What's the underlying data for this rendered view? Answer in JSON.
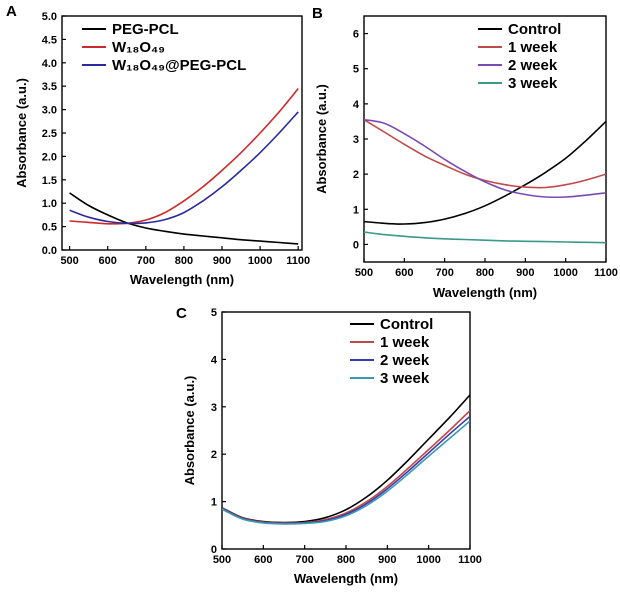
{
  "chart_data": [
    {
      "panel": "A",
      "type": "line",
      "title": "",
      "xlabel": "Wavelength (nm)",
      "ylabel": "Absorbance (a.u.)",
      "xlim": [
        480,
        1110
      ],
      "ylim": [
        0,
        5.0
      ],
      "xticks": [
        500,
        600,
        700,
        800,
        900,
        1000,
        1100
      ],
      "yticks": [
        0.0,
        0.5,
        1.0,
        1.5,
        2.0,
        2.5,
        3.0,
        3.5,
        4.0,
        4.5,
        5.0
      ],
      "ytick_labels": [
        "0.0",
        "0.5",
        "1.0",
        "1.5",
        "2.0",
        "2.5",
        "3.0",
        "3.5",
        "4.0",
        "4.5",
        "5.0"
      ],
      "legend_position": "top-left",
      "series": [
        {
          "name": "PEG-PCL",
          "color": "#000000",
          "x": [
            500,
            550,
            600,
            650,
            700,
            750,
            800,
            850,
            900,
            950,
            1000,
            1050,
            1100
          ],
          "y": [
            1.22,
            0.95,
            0.75,
            0.58,
            0.47,
            0.4,
            0.34,
            0.3,
            0.26,
            0.22,
            0.19,
            0.16,
            0.13
          ]
        },
        {
          "name": "W₁₈O₄₉",
          "color": "#cc2a2a",
          "x": [
            500,
            550,
            600,
            650,
            700,
            750,
            800,
            850,
            900,
            950,
            1000,
            1050,
            1100
          ],
          "y": [
            0.62,
            0.59,
            0.56,
            0.57,
            0.64,
            0.8,
            1.05,
            1.35,
            1.7,
            2.08,
            2.5,
            2.95,
            3.45
          ]
        },
        {
          "name": "W₁₈O₄₉@PEG-PCL",
          "color": "#2a2a9e",
          "x": [
            500,
            550,
            600,
            650,
            700,
            750,
            800,
            850,
            900,
            950,
            1000,
            1050,
            1100
          ],
          "y": [
            0.85,
            0.7,
            0.61,
            0.57,
            0.58,
            0.65,
            0.8,
            1.05,
            1.35,
            1.7,
            2.08,
            2.5,
            2.95
          ]
        }
      ]
    },
    {
      "panel": "B",
      "type": "line",
      "title": "",
      "xlabel": "Wavelength (nm)",
      "ylabel": "Absorbance (a.u.)",
      "xlim": [
        500,
        1100
      ],
      "ylim": [
        -0.5,
        6.5
      ],
      "xticks": [
        500,
        600,
        700,
        800,
        900,
        1000,
        1100
      ],
      "yticks": [
        0,
        1,
        2,
        3,
        4,
        5,
        6
      ],
      "ytick_labels": [
        "0",
        "1",
        "2",
        "3",
        "4",
        "5",
        "6"
      ],
      "legend_position": "top-right",
      "series": [
        {
          "name": "Control",
          "color": "#000000",
          "x": [
            500,
            550,
            600,
            650,
            700,
            750,
            800,
            850,
            900,
            950,
            1000,
            1050,
            1100
          ],
          "y": [
            0.65,
            0.6,
            0.58,
            0.62,
            0.72,
            0.88,
            1.1,
            1.38,
            1.7,
            2.05,
            2.45,
            2.95,
            3.5
          ]
        },
        {
          "name": "1 week",
          "color": "#c04a4a",
          "x": [
            500,
            550,
            600,
            650,
            700,
            750,
            800,
            850,
            900,
            950,
            1000,
            1050,
            1100
          ],
          "y": [
            3.55,
            3.2,
            2.85,
            2.52,
            2.25,
            2.0,
            1.82,
            1.7,
            1.63,
            1.62,
            1.7,
            1.83,
            2.0
          ]
        },
        {
          "name": "2 week",
          "color": "#7a4ab0",
          "x": [
            500,
            550,
            600,
            650,
            700,
            750,
            800,
            850,
            900,
            950,
            1000,
            1050,
            1100
          ],
          "y": [
            3.55,
            3.45,
            3.15,
            2.8,
            2.42,
            2.08,
            1.78,
            1.55,
            1.42,
            1.35,
            1.35,
            1.4,
            1.47
          ]
        },
        {
          "name": "3 week",
          "color": "#3a9a8a",
          "x": [
            500,
            550,
            600,
            650,
            700,
            750,
            800,
            850,
            900,
            950,
            1000,
            1050,
            1100
          ],
          "y": [
            0.35,
            0.28,
            0.23,
            0.19,
            0.16,
            0.14,
            0.12,
            0.1,
            0.09,
            0.08,
            0.07,
            0.06,
            0.05
          ]
        }
      ]
    },
    {
      "panel": "C",
      "type": "line",
      "title": "",
      "xlabel": "Wavelength (nm)",
      "ylabel": "Absorbance (a.u.)",
      "xlim": [
        500,
        1100
      ],
      "ylim": [
        0,
        5.0
      ],
      "xticks": [
        500,
        600,
        700,
        800,
        900,
        1000,
        1100
      ],
      "yticks": [
        0,
        1,
        2,
        3,
        4,
        5
      ],
      "ytick_labels": [
        "0",
        "1",
        "2",
        "3",
        "4",
        "5"
      ],
      "legend_position": "top-right",
      "series": [
        {
          "name": "Control",
          "color": "#000000",
          "x": [
            500,
            550,
            600,
            650,
            700,
            750,
            800,
            850,
            900,
            950,
            1000,
            1050,
            1100
          ],
          "y": [
            0.87,
            0.66,
            0.58,
            0.56,
            0.58,
            0.66,
            0.83,
            1.1,
            1.45,
            1.87,
            2.32,
            2.77,
            3.25
          ]
        },
        {
          "name": "1 week",
          "color": "#c04a4a",
          "x": [
            500,
            550,
            600,
            650,
            700,
            750,
            800,
            850,
            900,
            950,
            1000,
            1050,
            1100
          ],
          "y": [
            0.86,
            0.65,
            0.57,
            0.55,
            0.56,
            0.62,
            0.76,
            1.0,
            1.32,
            1.7,
            2.1,
            2.5,
            2.92
          ]
        },
        {
          "name": "2 week",
          "color": "#3a3ab0",
          "x": [
            500,
            550,
            600,
            650,
            700,
            750,
            800,
            850,
            900,
            950,
            1000,
            1050,
            1100
          ],
          "y": [
            0.85,
            0.64,
            0.56,
            0.54,
            0.55,
            0.6,
            0.73,
            0.96,
            1.27,
            1.64,
            2.03,
            2.42,
            2.8
          ]
        },
        {
          "name": "3 week",
          "color": "#3a9ab0",
          "x": [
            500,
            550,
            600,
            650,
            700,
            750,
            800,
            850,
            900,
            950,
            1000,
            1050,
            1100
          ],
          "y": [
            0.84,
            0.63,
            0.55,
            0.53,
            0.54,
            0.58,
            0.7,
            0.92,
            1.22,
            1.58,
            1.96,
            2.33,
            2.7
          ]
        }
      ]
    }
  ]
}
